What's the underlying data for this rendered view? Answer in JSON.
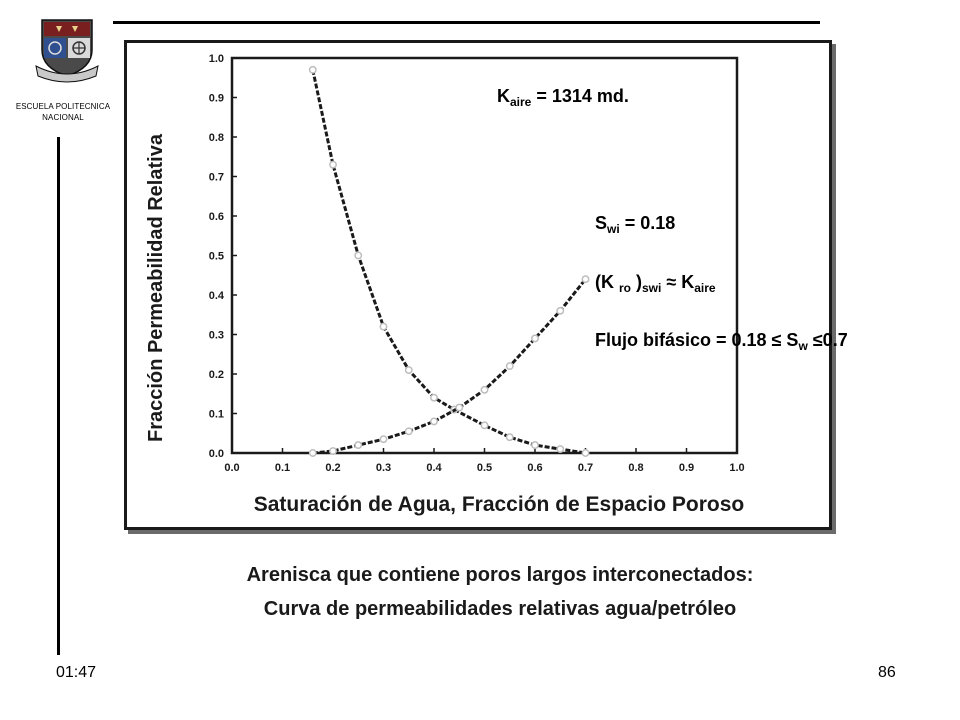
{
  "header": {
    "institution_line1": "ESCUELA POLITECNICA",
    "institution_line2": "NACIONAL"
  },
  "chart_data": {
    "type": "line",
    "xlabel": "Saturación de Agua, Fracción de Espacio Poroso",
    "ylabel": "Fracción Permeabilidad Relativa",
    "xlim": [
      0.0,
      1.0
    ],
    "ylim": [
      0.0,
      1.0
    ],
    "x_ticks": [
      "0.0",
      "0.1",
      "0.2",
      "0.3",
      "0.4",
      "0.5",
      "0.6",
      "0.7",
      "0.8",
      "0.9",
      "1.0"
    ],
    "y_ticks": [
      "0.0",
      "0.1",
      "0.2",
      "0.3",
      "0.4",
      "0.5",
      "0.6",
      "0.7",
      "0.8",
      "0.9",
      "1.0"
    ],
    "grid": false,
    "series": [
      {
        "values": [
          [
            0.16,
            0.97
          ],
          [
            0.2,
            0.73
          ],
          [
            0.25,
            0.5
          ],
          [
            0.3,
            0.32
          ],
          [
            0.35,
            0.21
          ],
          [
            0.4,
            0.14
          ],
          [
            0.44,
            0.11
          ],
          [
            0.5,
            0.07
          ],
          [
            0.55,
            0.04
          ],
          [
            0.6,
            0.02
          ],
          [
            0.65,
            0.01
          ],
          [
            0.7,
            0.0
          ]
        ]
      },
      {
        "values": [
          [
            0.16,
            0.0
          ],
          [
            0.2,
            0.005
          ],
          [
            0.25,
            0.02
          ],
          [
            0.3,
            0.035
          ],
          [
            0.35,
            0.055
          ],
          [
            0.4,
            0.08
          ],
          [
            0.45,
            0.115
          ],
          [
            0.5,
            0.16
          ],
          [
            0.55,
            0.22
          ],
          [
            0.6,
            0.29
          ],
          [
            0.65,
            0.36
          ],
          [
            0.7,
            0.44
          ]
        ]
      }
    ],
    "annotations": {
      "kaire_base": "K",
      "kaire_sub": "aire",
      "kaire_rest": " = 1314 md.",
      "swi_base": "S",
      "swi_sub": "wi",
      "swi_rest": "   = 0.18",
      "kro_prefix": "(K ",
      "kro_sub": "ro",
      "kro_mid": " )",
      "kro_sub2": "swi",
      "kro_approx": " ≈ K",
      "kro_sub3": "aire",
      "flujo_text": "Flujo bifásico = 0.18 ≤ S",
      "flujo_sub": "w",
      "flujo_rest": " ≤0.7"
    }
  },
  "caption": {
    "line1": "Arenisca que contiene poros largos interconectados:",
    "line2": "Curva de permeabilidades relativas agua/petróleo"
  },
  "footer": {
    "time": "01:47",
    "page_number": "86"
  },
  "colors": {
    "ink": "#1a1a1a",
    "marker": "#bdbdbd",
    "frame_shadow": "#6b6b6b"
  }
}
